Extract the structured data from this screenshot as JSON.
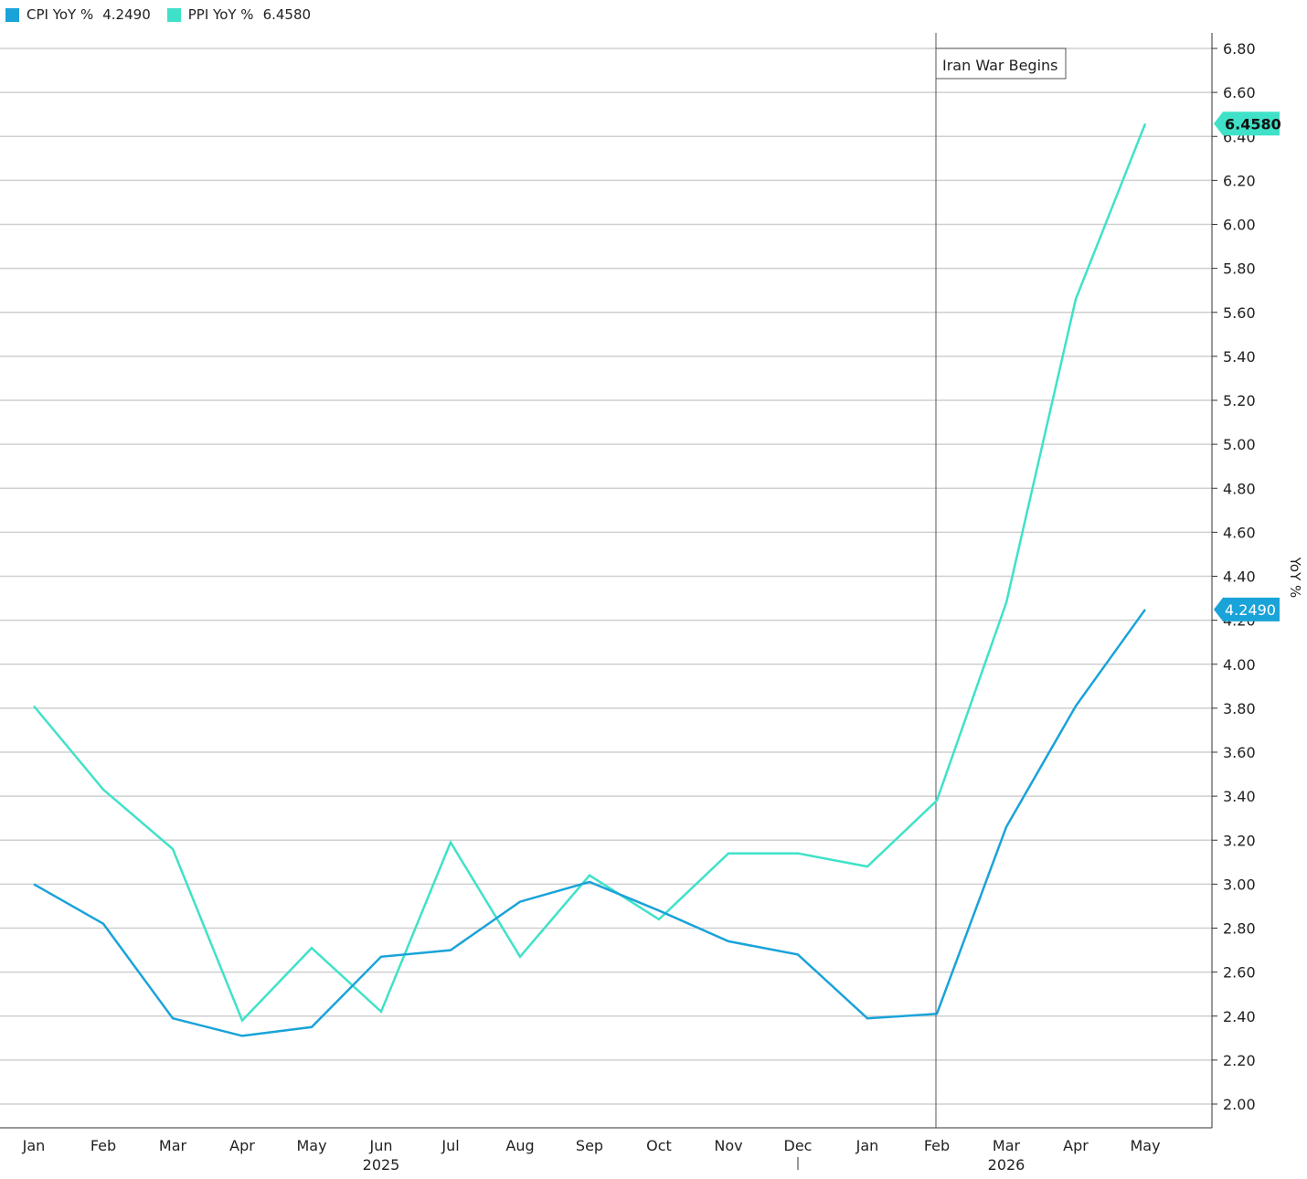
{
  "colors": {
    "cpi": "#1aa3d9",
    "ppi": "#3fe2c8",
    "grid": "#cfcfcf",
    "axis": "#333333",
    "event_line": "#555555"
  },
  "chart_data": {
    "type": "line",
    "categories": [
      "Jan",
      "Feb",
      "Mar",
      "Apr",
      "May",
      "Jun",
      "Jul",
      "Aug",
      "Sep",
      "Oct",
      "Nov",
      "Dec",
      "Jan",
      "Feb",
      "Mar",
      "Apr",
      "May"
    ],
    "year_labels": [
      {
        "index": 5,
        "text": "2025"
      },
      {
        "index": 14,
        "text": "2026"
      }
    ],
    "series": [
      {
        "name": "CPI YoY %",
        "last_value": "4.2490",
        "color": "#1aa3d9",
        "values": [
          3.0,
          2.82,
          2.39,
          2.31,
          2.35,
          2.67,
          2.7,
          2.92,
          3.01,
          2.88,
          2.74,
          2.68,
          2.39,
          2.41,
          3.26,
          3.81,
          4.249
        ]
      },
      {
        "name": "PPI YoY %",
        "last_value": "6.4580",
        "color": "#3fe2c8",
        "values": [
          3.81,
          3.43,
          3.16,
          2.38,
          2.71,
          2.42,
          3.19,
          2.67,
          3.04,
          2.84,
          3.14,
          3.14,
          3.08,
          3.38,
          4.28,
          5.66,
          6.458
        ]
      }
    ],
    "ylabel": "YoY %",
    "ylim": [
      1.9,
      6.88
    ],
    "y_ticks": [
      "6.80",
      "6.60",
      "6.40",
      "6.20",
      "6.00",
      "5.80",
      "5.60",
      "5.40",
      "5.20",
      "5.00",
      "4.80",
      "4.60",
      "4.40",
      "4.20",
      "4.00",
      "3.80",
      "3.60",
      "3.40",
      "3.20",
      "3.00",
      "2.80",
      "2.60",
      "2.40",
      "2.20",
      "2.00"
    ],
    "grid": true,
    "legend": "top-left",
    "event": {
      "index": 13,
      "label": "Iran War Begins"
    }
  }
}
